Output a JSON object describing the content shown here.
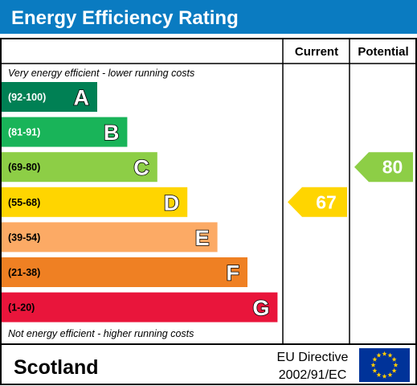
{
  "header": {
    "title": "Energy Efficiency Rating",
    "color": "#0a7bc1"
  },
  "columns": {
    "current": "Current",
    "potential": "Potential"
  },
  "notes": {
    "top": "Very energy efficient - lower running costs",
    "bottom": "Not energy efficient - higher running costs"
  },
  "footer": {
    "country": "Scotland",
    "directive_line1": "EU Directive",
    "directive_line2": "2002/91/EC",
    "flag_color": "#003399",
    "star_color": "#ffcc00"
  },
  "chart_data": {
    "type": "bar",
    "title": "Energy Efficiency Rating",
    "categories": [
      "A",
      "B",
      "C",
      "D",
      "E",
      "F",
      "G"
    ],
    "ranges": [
      "(92-100)",
      "(81-91)",
      "(69-80)",
      "(55-68)",
      "(39-54)",
      "(21-38)",
      "(1-20)"
    ],
    "colors": [
      "#008054",
      "#19b459",
      "#8dce46",
      "#ffd500",
      "#fcaa65",
      "#ef8023",
      "#e9153b"
    ],
    "range_text_colors": [
      "#ffffff",
      "#ffffff",
      "#000000",
      "#000000",
      "#000000",
      "#000000",
      "#000000"
    ],
    "current": {
      "value": 67,
      "band": "D",
      "color": "#ffd500"
    },
    "potential": {
      "value": 80,
      "band": "C",
      "color": "#8dce46"
    }
  }
}
